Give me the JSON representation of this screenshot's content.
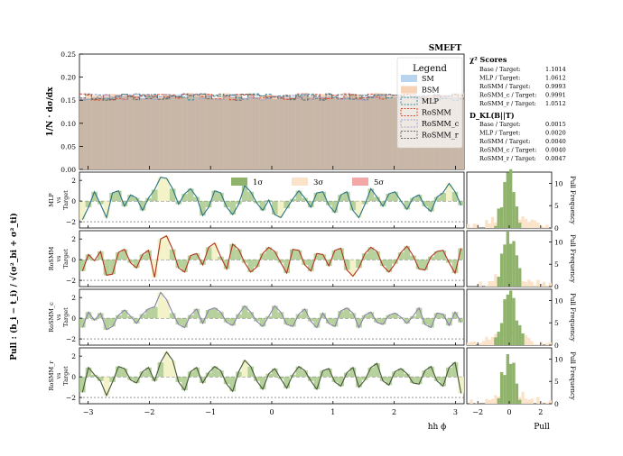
{
  "figure": {
    "suptitle": "SMEFT",
    "pull_ylabel": "Pull : (b_i − t_i) / √(σ²_bi + σ²_ti)"
  },
  "legend": {
    "title": "Legend",
    "entries": [
      {
        "label": "SM",
        "color": "#b9d4ee",
        "style": "fill"
      },
      {
        "label": "BSM",
        "color": "#f7d2b4",
        "style": "fill"
      },
      {
        "label": "MLP",
        "color": "#3a8fa0",
        "style": "dashed"
      },
      {
        "label": "RoSMM",
        "color": "#d7472c",
        "style": "dashed"
      },
      {
        "label": "RoSMM_c",
        "color": "#a8a0cc",
        "style": "dashed"
      },
      {
        "label": "RoSMM_r",
        "color": "#666666",
        "style": "dashed"
      }
    ]
  },
  "scores": {
    "chi2_title": "χ² Scores",
    "chi2": [
      {
        "label": "Base / Target:",
        "value": "1.1014"
      },
      {
        "label": "MLP / Target:",
        "value": "1.0612"
      },
      {
        "label": "RoSMM / Target:",
        "value": "0.9993"
      },
      {
        "label": "RoSMM_c / Target:",
        "value": "0.9991"
      },
      {
        "label": "RoSMM_r / Target:",
        "value": "1.0512"
      }
    ],
    "dkl_title": "D_KL(B||T)",
    "dkl": [
      {
        "label": "Base / Target:",
        "value": "0.0015"
      },
      {
        "label": "MLP / Target:",
        "value": "0.0020"
      },
      {
        "label": "RoSMM / Target:",
        "value": "0.0040"
      },
      {
        "label": "RoSMM_c / Target:",
        "value": "0.0040"
      },
      {
        "label": "RoSMM_r / Target:",
        "value": "0.0047"
      }
    ]
  },
  "sigma_legend": [
    {
      "label": "1σ",
      "color": "#8fb36b"
    },
    {
      "label": "3σ",
      "color": "#fbe3c9"
    },
    {
      "label": "5σ",
      "color": "#f4a7a7"
    }
  ],
  "chart_data": [
    {
      "type": "histogram",
      "ylabel": "1/N · dσ/dx",
      "ylim": [
        0,
        0.25
      ],
      "yticks": [
        "0.00",
        "0.05",
        "0.10",
        "0.15",
        "0.20",
        "0.25"
      ],
      "xlim": [
        -3.1416,
        3.1416
      ],
      "series": [
        {
          "name": "SM",
          "color": "#b9d4ee",
          "values_mean": 0.158
        },
        {
          "name": "BSM",
          "color": "#f7d2b4",
          "values_mean": 0.16
        },
        {
          "name": "MLP",
          "color": "#3a8fa0"
        },
        {
          "name": "RoSMM",
          "color": "#d7472c"
        },
        {
          "name": "RoSMM_c",
          "color": "#a8a0cc"
        },
        {
          "name": "RoSMM_r",
          "color": "#666666"
        }
      ],
      "bins": 64
    },
    {
      "type": "line",
      "xlabel": "hh ϕ",
      "xlim": [
        -3.1416,
        3.1416
      ],
      "xticks": [
        "−3",
        "−2",
        "−1",
        "0",
        "1",
        "2",
        "3"
      ],
      "ylim": [
        -2.6,
        2.8
      ],
      "yticks": [
        "−2",
        "0",
        "2"
      ],
      "panels": [
        {
          "ylabel_top": "MLP",
          "ylabel_mid": "vs",
          "ylabel_bot": "Target",
          "color": "#3a8fa0"
        },
        {
          "ylabel_top": "RoSMM",
          "ylabel_mid": "vs",
          "ylabel_bot": "Target",
          "color": "#d7472c"
        },
        {
          "ylabel_top": "RoSMM_c",
          "ylabel_mid": "vs",
          "ylabel_bot": "Target",
          "color": "#a8a0cc"
        },
        {
          "ylabel_top": "RoSMM_r",
          "ylabel_mid": "vs",
          "ylabel_bot": "Target",
          "color": "#5a6e4a"
        }
      ],
      "pull_values": [
        [
          -1.8,
          -0.6,
          0.9,
          -0.3,
          -1.6,
          0.8,
          1.0,
          -0.5,
          0.6,
          0.3,
          -0.9,
          0.3,
          1.1,
          2.3,
          2.2,
          1.2,
          -0.3,
          0.7,
          1.2,
          0.4,
          -1.4,
          -0.6,
          1.0,
          0.8,
          -0.6,
          -1.3,
          -0.3,
          1.5,
          0.9,
          -0.2,
          -0.9,
          0.1,
          -1.3,
          -1.6,
          -0.7,
          0.2,
          1.0,
          0.3,
          -0.6,
          0.8,
          0.9,
          -0.4,
          -1.1,
          0.6,
          0.9,
          -0.9,
          -1.6,
          -0.3,
          1.2,
          0.4,
          -0.5,
          0.7,
          0.9,
          0.0,
          -0.8,
          0.3,
          0.6,
          -0.5,
          -1.0,
          0.4,
          0.8,
          1.7,
          0.9,
          -0.4
        ],
        [
          -1.1,
          0.5,
          -0.1,
          0.8,
          -1.5,
          -1.4,
          0.7,
          1.0,
          -0.3,
          -0.8,
          0.5,
          0.9,
          -1.7,
          2.0,
          2.3,
          1.0,
          -0.8,
          -1.2,
          0.4,
          0.6,
          -0.5,
          1.2,
          1.6,
          0.3,
          -0.9,
          1.5,
          1.0,
          -0.3,
          -1.2,
          -0.7,
          0.6,
          1.2,
          0.8,
          -0.3,
          -1.3,
          1.0,
          0.9,
          -0.5,
          -1.1,
          0.6,
          0.5,
          -0.6,
          0.9,
          1.1,
          -1.0,
          -1.6,
          -0.8,
          0.6,
          1.2,
          0.8,
          -0.6,
          -1.2,
          -0.4,
          0.7,
          1.3,
          0.4,
          -0.9,
          -1.0,
          0.3,
          0.8,
          0.9,
          -0.3,
          -1.3,
          1.1
        ],
        [
          -0.9,
          0.6,
          -0.2,
          0.5,
          -1.1,
          -0.8,
          0.3,
          0.8,
          0.2,
          -0.5,
          0.4,
          0.9,
          1.1,
          2.5,
          1.8,
          0.5,
          -0.6,
          -0.9,
          0.3,
          0.9,
          -0.5,
          0.8,
          1.0,
          0.6,
          -0.4,
          -0.7,
          0.4,
          1.2,
          0.6,
          -0.3,
          -0.8,
          0.2,
          1.2,
          0.6,
          -0.6,
          -0.8,
          0.4,
          0.9,
          -0.3,
          -0.9,
          0.5,
          -0.5,
          -0.8,
          0.7,
          1.0,
          0.5,
          -0.9,
          0.3,
          0.6,
          -0.4,
          -0.6,
          0.3,
          0.5,
          0.1,
          -0.5,
          0.2,
          1.0,
          -0.6,
          -0.9,
          0.5,
          0.4,
          -0.7,
          0.6,
          -0.4
        ],
        [
          -1.5,
          0.9,
          0.2,
          -0.4,
          -1.8,
          -0.5,
          1.0,
          0.8,
          -0.3,
          -0.6,
          0.5,
          0.9,
          -0.4,
          1.4,
          2.4,
          1.6,
          -0.5,
          -1.3,
          0.5,
          0.9,
          -0.6,
          0.4,
          1.0,
          0.6,
          -0.7,
          -1.4,
          0.5,
          1.6,
          1.0,
          -0.4,
          -1.2,
          0.3,
          0.8,
          -0.2,
          -1.1,
          0.2,
          1.0,
          0.6,
          -0.4,
          -1.2,
          0.6,
          0.8,
          -0.5,
          -0.9,
          0.4,
          0.9,
          -1.0,
          -0.3,
          0.9,
          1.3,
          -0.4,
          -0.8,
          0.5,
          0.8,
          0.3,
          -0.6,
          -0.7,
          0.6,
          1.0,
          -0.4,
          -0.9,
          0.9,
          1.4,
          -1.6
        ]
      ]
    },
    {
      "type": "bar",
      "orientation": "horizontal-histogram",
      "xlabel": "Pull",
      "xticks": [
        "−2",
        "0",
        "2"
      ],
      "xlim": [
        -2.7,
        2.7
      ],
      "ylabel": "Pull Frequency",
      "yticks": [
        "0",
        "5",
        "10"
      ],
      "ylim": [
        0,
        12.5
      ]
    }
  ]
}
